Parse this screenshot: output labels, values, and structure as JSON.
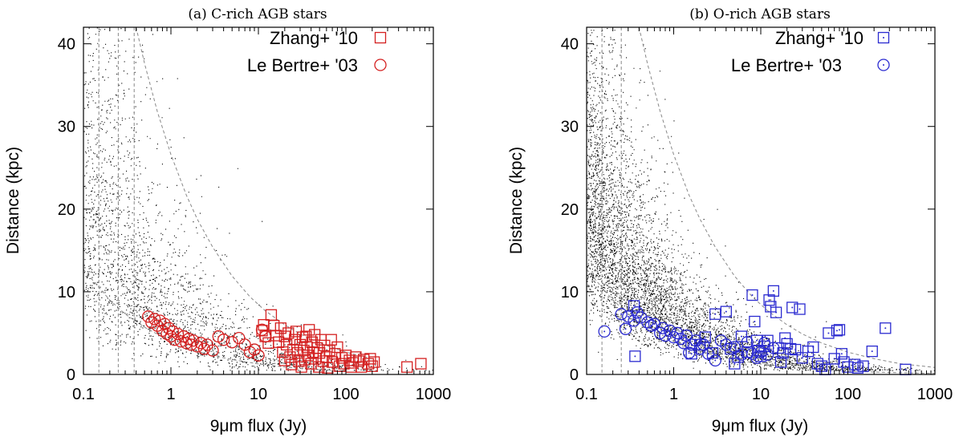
{
  "chart_data": [
    {
      "type": "scatter",
      "title": "(a) C-rich AGB stars",
      "xlabel": "9μm flux (Jy)",
      "ylabel": "Distance (kpc)",
      "xscale": "log",
      "xlim": [
        0.1,
        1000
      ],
      "ylim": [
        0,
        42
      ],
      "xticks": [
        0.1,
        1,
        10,
        100,
        1000
      ],
      "xtick_labels": [
        "0.1",
        "1",
        "10",
        "100",
        "1000"
      ],
      "yticks": [
        0,
        10,
        20,
        30,
        40
      ],
      "ytick_labels": [
        "0",
        "10",
        "20",
        "30",
        "40"
      ],
      "legend_position": "top-right",
      "grid": false,
      "colors": {
        "model": "#000000",
        "observed": "#d42020",
        "guide": "#888888"
      },
      "vertical_lines": [
        0.15,
        0.25,
        0.38
      ],
      "curves": [
        {
          "style": "dashed",
          "points": [
            [
              0.1,
              12.7
            ],
            [
              0.2,
              9.0
            ],
            [
              0.3,
              7.3
            ],
            [
              0.5,
              5.7
            ],
            [
              1,
              4.0
            ],
            [
              2,
              2.8
            ],
            [
              3,
              2.3
            ],
            [
              5,
              1.8
            ],
            [
              10,
              1.27
            ],
            [
              20,
              0.9
            ],
            [
              40,
              0.64
            ],
            [
              100,
              0.4
            ]
          ]
        },
        {
          "style": "dashed",
          "points": [
            [
              0.4,
              42
            ],
            [
              0.5,
              37.6
            ],
            [
              0.7,
              31.8
            ],
            [
              1,
              26.6
            ],
            [
              1.5,
              21.7
            ],
            [
              2,
              18.8
            ],
            [
              3,
              15.4
            ],
            [
              5,
              11.9
            ],
            [
              8,
              9.4
            ],
            [
              12,
              7.7
            ],
            [
              20,
              6.0
            ],
            [
              30,
              4.9
            ],
            [
              50,
              3.8
            ],
            [
              100,
              2.7
            ],
            [
              200,
              1.9
            ]
          ]
        }
      ],
      "series": [
        {
          "name": "Zhang+ '10",
          "marker": "square",
          "points": [
            [
              11,
              5.3
            ],
            [
              11.5,
              6.0
            ],
            [
              12,
              4.6
            ],
            [
              13,
              3.8
            ],
            [
              14,
              7.2
            ],
            [
              15,
              5.9
            ],
            [
              16,
              4.7
            ],
            [
              17,
              3.9
            ],
            [
              18,
              5.6
            ],
            [
              19,
              2.7
            ],
            [
              20,
              1.7
            ],
            [
              20,
              4.6
            ],
            [
              21,
              3.6
            ],
            [
              22,
              5.0
            ],
            [
              23,
              2.1
            ],
            [
              24,
              1.2
            ],
            [
              25,
              3.0
            ],
            [
              26,
              4.2
            ],
            [
              27,
              5.2
            ],
            [
              28,
              2.6
            ],
            [
              29,
              1.6
            ],
            [
              30,
              3.6
            ],
            [
              31,
              0.9
            ],
            [
              32,
              4.5
            ],
            [
              33,
              2.9
            ],
            [
              34,
              1.8
            ],
            [
              35,
              4.6
            ],
            [
              36,
              3.3
            ],
            [
              37,
              2.3
            ],
            [
              38,
              5.4
            ],
            [
              40,
              1.3
            ],
            [
              41,
              3.9
            ],
            [
              42,
              2.7
            ],
            [
              44,
              4.8
            ],
            [
              45,
              1.9
            ],
            [
              47,
              3.2
            ],
            [
              49,
              0.9
            ],
            [
              50,
              2.6
            ],
            [
              52,
              4.2
            ],
            [
              55,
              1.6
            ],
            [
              57,
              3.5
            ],
            [
              60,
              2.1
            ],
            [
              62,
              0.8
            ],
            [
              65,
              2.9
            ],
            [
              68,
              4.2
            ],
            [
              70,
              1.5
            ],
            [
              75,
              2.5
            ],
            [
              80,
              3.3
            ],
            [
              85,
              1.0
            ],
            [
              90,
              2.0
            ],
            [
              95,
              1.3
            ],
            [
              100,
              2.3
            ],
            [
              110,
              1.7
            ],
            [
              115,
              0.9
            ],
            [
              120,
              1.4
            ],
            [
              130,
              2.1
            ],
            [
              140,
              1.6
            ],
            [
              150,
              0.9
            ],
            [
              160,
              1.8
            ],
            [
              180,
              1.3
            ],
            [
              190,
              1.9
            ],
            [
              200,
              1.0
            ],
            [
              210,
              1.5
            ],
            [
              500,
              0.9
            ],
            [
              720,
              1.3
            ]
          ]
        },
        {
          "name": "Le Bertre+ '03",
          "marker": "circle",
          "points": [
            [
              0.55,
              7.0
            ],
            [
              0.6,
              6.3
            ],
            [
              0.65,
              6.7
            ],
            [
              0.7,
              5.9
            ],
            [
              0.75,
              6.5
            ],
            [
              0.8,
              5.3
            ],
            [
              0.85,
              6.1
            ],
            [
              0.9,
              4.9
            ],
            [
              0.95,
              5.6
            ],
            [
              1.0,
              4.6
            ],
            [
              1.05,
              5.2
            ],
            [
              1.1,
              4.2
            ],
            [
              1.2,
              4.9
            ],
            [
              1.3,
              4.0
            ],
            [
              1.4,
              4.6
            ],
            [
              1.5,
              3.8
            ],
            [
              1.6,
              4.3
            ],
            [
              1.7,
              3.6
            ],
            [
              1.8,
              4.1
            ],
            [
              2.0,
              3.4
            ],
            [
              2.2,
              3.8
            ],
            [
              2.4,
              3.1
            ],
            [
              2.6,
              3.6
            ],
            [
              3.0,
              2.9
            ],
            [
              3.5,
              4.6
            ],
            [
              4.0,
              4.2
            ],
            [
              5.0,
              3.9
            ],
            [
              6.0,
              4.4
            ],
            [
              7.0,
              3.6
            ],
            [
              8.0,
              2.7
            ],
            [
              9.0,
              3.0
            ],
            [
              10.0,
              2.3
            ],
            [
              11.0,
              5.4
            ],
            [
              12.0,
              4.6
            ]
          ]
        }
      ]
    },
    {
      "type": "scatter",
      "title": "(b) O-rich AGB stars",
      "xlabel": "9μm flux (Jy)",
      "ylabel": "Distance (kpc)",
      "xscale": "log",
      "xlim": [
        0.1,
        1000
      ],
      "ylim": [
        0,
        42
      ],
      "xticks": [
        0.1,
        1,
        10,
        100,
        1000
      ],
      "xtick_labels": [
        "0.1",
        "1",
        "10",
        "100",
        "1000"
      ],
      "yticks": [
        0,
        10,
        20,
        30,
        40
      ],
      "ytick_labels": [
        "0",
        "10",
        "20",
        "30",
        "40"
      ],
      "legend_position": "top-right",
      "grid": false,
      "colors": {
        "model": "#000000",
        "observed": "#2b2bd0",
        "guide": "#888888"
      },
      "vertical_lines": [
        0.15,
        0.25
      ],
      "curves": [
        {
          "style": "dashed",
          "points": [
            [
              0.1,
              12.7
            ],
            [
              0.2,
              9.0
            ],
            [
              0.3,
              7.3
            ],
            [
              0.5,
              5.7
            ],
            [
              1,
              4.0
            ],
            [
              2,
              2.8
            ],
            [
              3,
              2.3
            ],
            [
              5,
              1.8
            ],
            [
              10,
              1.27
            ],
            [
              20,
              0.9
            ],
            [
              40,
              0.64
            ],
            [
              100,
              0.4
            ],
            [
              300,
              0.23
            ],
            [
              1000,
              0.13
            ]
          ]
        },
        {
          "style": "dashed",
          "points": [
            [
              0.4,
              42
            ],
            [
              0.5,
              37.6
            ],
            [
              0.7,
              31.8
            ],
            [
              1,
              26.6
            ],
            [
              1.5,
              21.7
            ],
            [
              2,
              18.8
            ],
            [
              3,
              15.4
            ],
            [
              5,
              11.9
            ],
            [
              8,
              9.4
            ],
            [
              12,
              7.7
            ],
            [
              20,
              6.0
            ],
            [
              30,
              4.9
            ],
            [
              50,
              3.8
            ],
            [
              100,
              2.7
            ],
            [
              200,
              1.9
            ],
            [
              400,
              1.3
            ],
            [
              1000,
              0.84
            ]
          ]
        }
      ],
      "series": [
        {
          "name": "Zhang+ '10",
          "marker": "square-dot",
          "points": [
            [
              0.35,
              8.3
            ],
            [
              0.36,
              2.2
            ],
            [
              1.6,
              2.5
            ],
            [
              2.0,
              3.6
            ],
            [
              2.3,
              4.5
            ],
            [
              2.8,
              2.6
            ],
            [
              3.0,
              7.3
            ],
            [
              4.0,
              7.6
            ],
            [
              4.5,
              3.1
            ],
            [
              5.0,
              1.3
            ],
            [
              5.5,
              2.1
            ],
            [
              6.0,
              4.6
            ],
            [
              7.0,
              2.7
            ],
            [
              8.0,
              9.6
            ],
            [
              8.5,
              6.4
            ],
            [
              9.0,
              4.1
            ],
            [
              9.5,
              2.9
            ],
            [
              10,
              2.2
            ],
            [
              11,
              3.4
            ],
            [
              12,
              4.1
            ],
            [
              12.5,
              9.0
            ],
            [
              13,
              8.2
            ],
            [
              14,
              10.1
            ],
            [
              15,
              7.5
            ],
            [
              16,
              3.2
            ],
            [
              17,
              1.5
            ],
            [
              18,
              2.6
            ],
            [
              19,
              4.4
            ],
            [
              20,
              3.7
            ],
            [
              22,
              3.1
            ],
            [
              23,
              8.1
            ],
            [
              25,
              3.0
            ],
            [
              28,
              7.9
            ],
            [
              30,
              2.0
            ],
            [
              35,
              2.8
            ],
            [
              40,
              3.3
            ],
            [
              45,
              1.3
            ],
            [
              50,
              1.0
            ],
            [
              55,
              0.6
            ],
            [
              60,
              5.0
            ],
            [
              70,
              1.9
            ],
            [
              75,
              5.3
            ],
            [
              80,
              5.4
            ],
            [
              85,
              2.5
            ],
            [
              90,
              1.5
            ],
            [
              100,
              0.9
            ],
            [
              120,
              1.2
            ],
            [
              130,
              0.8
            ],
            [
              150,
              1.0
            ],
            [
              190,
              2.8
            ],
            [
              270,
              5.6
            ],
            [
              460,
              0.6
            ]
          ]
        },
        {
          "name": "Le Bertre+ '03",
          "marker": "circle-dot",
          "points": [
            [
              0.16,
              5.2
            ],
            [
              0.25,
              7.3
            ],
            [
              0.28,
              5.5
            ],
            [
              0.3,
              7.0
            ],
            [
              0.35,
              6.5
            ],
            [
              0.38,
              7.5
            ],
            [
              0.42,
              6.9
            ],
            [
              0.5,
              6.3
            ],
            [
              0.55,
              5.9
            ],
            [
              0.6,
              6.1
            ],
            [
              0.7,
              5.0
            ],
            [
              0.75,
              5.6
            ],
            [
              0.8,
              4.7
            ],
            [
              0.9,
              5.3
            ],
            [
              1.0,
              4.5
            ],
            [
              1.1,
              5.0
            ],
            [
              1.2,
              4.3
            ],
            [
              1.3,
              3.8
            ],
            [
              1.4,
              4.7
            ],
            [
              1.5,
              2.6
            ],
            [
              1.6,
              3.6
            ],
            [
              1.8,
              4.1
            ],
            [
              2.0,
              3.1
            ],
            [
              2.2,
              3.6
            ],
            [
              2.5,
              2.5
            ],
            [
              3.0,
              1.7
            ],
            [
              3.5,
              4.1
            ],
            [
              4.0,
              3.6
            ],
            [
              5.0,
              3.3
            ],
            [
              6.0,
              2.4
            ],
            [
              7.0,
              3.9
            ],
            [
              8.0,
              2.5
            ],
            [
              9.0,
              2.0
            ],
            [
              10.0,
              2.7
            ],
            [
              11.0,
              3.8
            ],
            [
              12.0,
              2.4
            ],
            [
              14.0,
              3.2
            ]
          ]
        }
      ]
    }
  ]
}
